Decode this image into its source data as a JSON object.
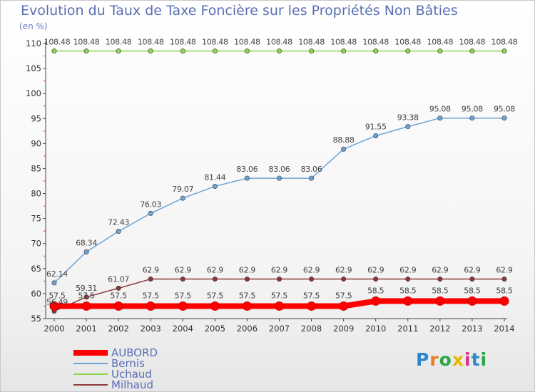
{
  "header": {
    "title": "Evolution du Taux de Taxe Foncière sur les Propriétés Non Bâties",
    "unit": "(en %)"
  },
  "logo": {
    "text": "Proxiti",
    "letter_colors": [
      "#2f86c9",
      "#e67e22",
      "#27a845",
      "#e6b800",
      "#d63384",
      "#2f86c9",
      "#27a845"
    ]
  },
  "chart_data": {
    "type": "line",
    "title": "Evolution du Taux de Taxe Foncière sur les Propriétés Non Bâties",
    "ylabel": "(en %)",
    "xlabel": "",
    "x": [
      "2000",
      "2001",
      "2002",
      "2003",
      "2004",
      "2005",
      "2006",
      "2007",
      "2008",
      "2009",
      "2010",
      "2011",
      "2012",
      "2013",
      "2014"
    ],
    "ylim": [
      55,
      110
    ],
    "yticks": [
      55,
      60,
      65,
      70,
      75,
      80,
      85,
      90,
      95,
      100,
      105,
      110
    ],
    "grid": false,
    "legend_position": "bottom-left",
    "series": [
      {
        "name": "AUBORD",
        "color": "#ff0000",
        "values": [
          57.5,
          57.5,
          57.5,
          57.5,
          57.5,
          57.5,
          57.5,
          57.5,
          57.5,
          57.5,
          58.5,
          58.5,
          58.5,
          58.5,
          58.5
        ],
        "labels": [
          "57.5",
          "57.5",
          "57.5",
          "57.5",
          "57.5",
          "57.5",
          "57.5",
          "57.5",
          "57.5",
          "57.5",
          "58.5",
          "58.5",
          "58.5",
          "58.5",
          "58.5"
        ]
      },
      {
        "name": "Bernis",
        "color": "#6fa3d6",
        "values": [
          62.14,
          68.34,
          72.43,
          76.03,
          79.07,
          81.44,
          83.06,
          83.06,
          83.06,
          88.88,
          91.55,
          93.38,
          95.08,
          95.08,
          95.08
        ],
        "labels": [
          "62.14",
          "68.34",
          "72.43",
          "76.03",
          "79.07",
          "81.44",
          "83.06",
          "83.06",
          "83.06",
          "88.88",
          "91.55",
          "93.38",
          "95.08",
          "95.08",
          "95.08"
        ]
      },
      {
        "name": "Uchaud",
        "color": "#8ed44e",
        "values": [
          108.48,
          108.48,
          108.48,
          108.48,
          108.48,
          108.48,
          108.48,
          108.48,
          108.48,
          108.48,
          108.48,
          108.48,
          108.48,
          108.48,
          108.48
        ],
        "labels": [
          "108.48",
          "108.48",
          "108.48",
          "108.48",
          "108.48",
          "108.48",
          "108.48",
          "108.48",
          "108.48",
          "108.48",
          "108.48",
          "108.48",
          "108.48",
          "108.48",
          "108.48"
        ]
      },
      {
        "name": "Milhaud",
        "color": "#8b3a3a",
        "values": [
          56.49,
          59.31,
          61.07,
          62.9,
          62.9,
          62.9,
          62.9,
          62.9,
          62.9,
          62.9,
          62.9,
          62.9,
          62.9,
          62.9,
          62.9
        ],
        "labels": [
          "56.49",
          "59.31",
          "61.07",
          "62.9",
          "62.9",
          "62.9",
          "62.9",
          "62.9",
          "62.9",
          "62.9",
          "62.9",
          "62.9",
          "62.9",
          "62.9",
          "62.9"
        ]
      }
    ]
  }
}
